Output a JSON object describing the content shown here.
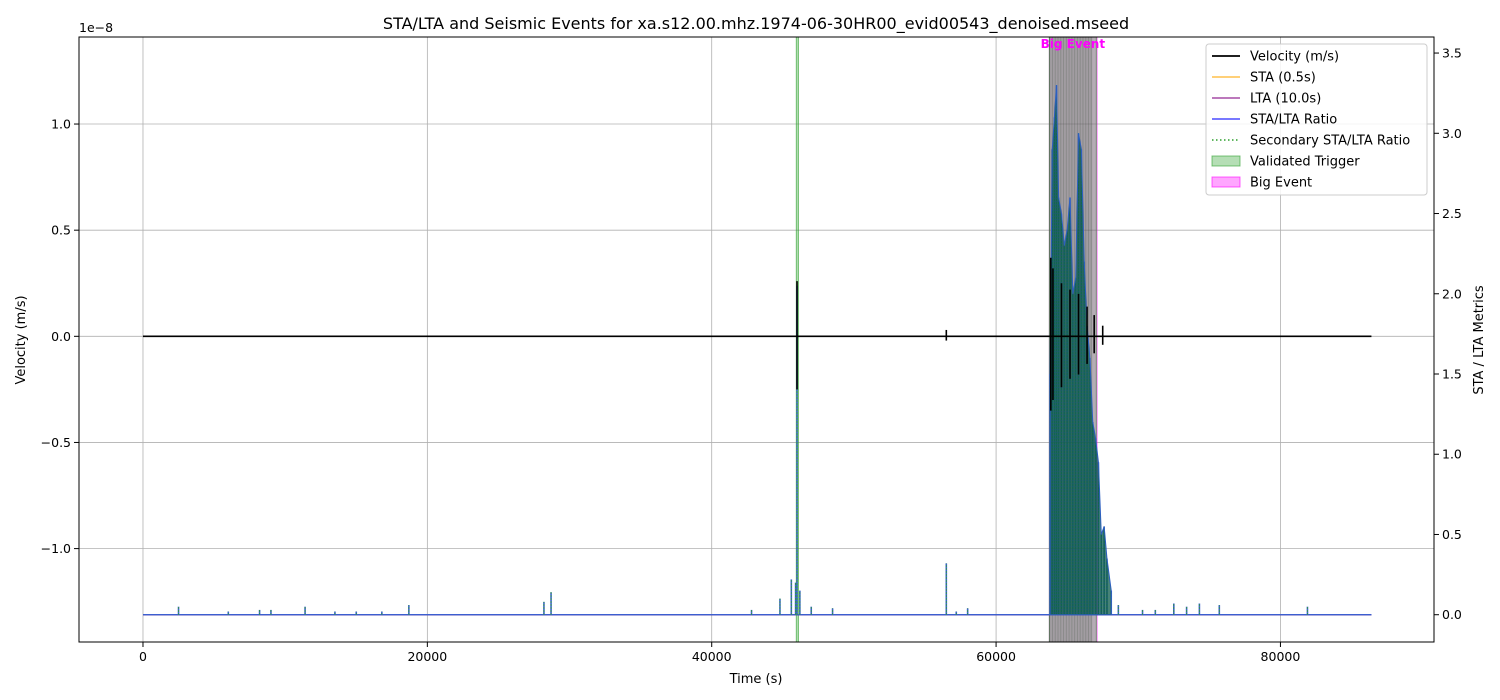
{
  "chart_data": {
    "type": "line",
    "title": "STA/LTA and Seismic Events for xa.s12.00.mhz.1974-06-30HR00_evid00543_denoised.mseed",
    "xlabel": "Time (s)",
    "ylabel_left": "Velocity (m/s)",
    "ylabel_right": "STA / LTA Metrics",
    "y_left_offset_label": "1e−8",
    "xlim": [
      -4500,
      90800
    ],
    "ylim_left": [
      -1.44,
      1.41
    ],
    "ylim_right": [
      -0.17,
      3.6
    ],
    "x_ticks": [
      0,
      20000,
      40000,
      60000,
      80000
    ],
    "x_tick_labels": [
      "0",
      "20000",
      "40000",
      "60000",
      "80000"
    ],
    "y_left_ticks": [
      -1.0,
      -0.5,
      0.0,
      0.5,
      1.0
    ],
    "y_left_tick_labels": [
      "−1.0",
      "−0.5",
      "0.0",
      "0.5",
      "1.0"
    ],
    "y_right_ticks": [
      0.0,
      0.5,
      1.0,
      1.5,
      2.0,
      2.5,
      3.0,
      3.5
    ],
    "y_right_tick_labels": [
      "0.0",
      "0.5",
      "1.0",
      "1.5",
      "2.0",
      "2.5",
      "3.0",
      "3.5"
    ],
    "grid": true,
    "legend_position": "top-right",
    "legend": [
      {
        "label": "Velocity (m/s)",
        "style": "line",
        "color": "#000000"
      },
      {
        "label": "STA (0.5s)",
        "style": "line",
        "color": "#ffa500"
      },
      {
        "label": "LTA (10.0s)",
        "style": "line",
        "color": "#800080"
      },
      {
        "label": "STA/LTA Ratio",
        "style": "line",
        "color": "#0000ff"
      },
      {
        "label": "Secondary STA/LTA Ratio",
        "style": "dotted",
        "color": "#2ca02c"
      },
      {
        "label": "Validated Trigger",
        "style": "patch",
        "color": "#2ca02c"
      },
      {
        "label": "Big Event",
        "style": "patch",
        "color": "#ff00ff"
      }
    ],
    "velocity": {
      "name": "Velocity (m/s)",
      "color": "#000000",
      "x_range": [
        0,
        86400
      ],
      "spikes": [
        {
          "x": 46000,
          "top": 0.26,
          "bottom": -0.25
        },
        {
          "x": 56500,
          "top": 0.03,
          "bottom": -0.02
        },
        {
          "x": 63850,
          "top": 0.37,
          "bottom": -0.35
        },
        {
          "x": 64000,
          "top": 0.32,
          "bottom": -0.3
        },
        {
          "x": 64600,
          "top": 0.25,
          "bottom": -0.24
        },
        {
          "x": 65200,
          "top": 0.22,
          "bottom": -0.2
        },
        {
          "x": 65800,
          "top": 0.2,
          "bottom": -0.18
        },
        {
          "x": 66400,
          "top": 0.14,
          "bottom": -0.13
        },
        {
          "x": 66900,
          "top": 0.1,
          "bottom": -0.08
        },
        {
          "x": 67500,
          "top": 0.05,
          "bottom": -0.04
        }
      ]
    },
    "ratio": {
      "name": "STA/LTA Ratio",
      "color": "#3b5fd0",
      "baseline": 0.0,
      "peaks": [
        {
          "x": 2500,
          "y": 0.05
        },
        {
          "x": 6000,
          "y": 0.02
        },
        {
          "x": 8200,
          "y": 0.03
        },
        {
          "x": 9000,
          "y": 0.03
        },
        {
          "x": 11400,
          "y": 0.05
        },
        {
          "x": 13500,
          "y": 0.02
        },
        {
          "x": 15000,
          "y": 0.02
        },
        {
          "x": 16800,
          "y": 0.02
        },
        {
          "x": 18700,
          "y": 0.06
        },
        {
          "x": 28200,
          "y": 0.08
        },
        {
          "x": 28700,
          "y": 0.14
        },
        {
          "x": 42800,
          "y": 0.03
        },
        {
          "x": 44800,
          "y": 0.1
        },
        {
          "x": 45600,
          "y": 0.22
        },
        {
          "x": 45900,
          "y": 0.2
        },
        {
          "x": 46000,
          "y": 2.05
        },
        {
          "x": 46200,
          "y": 0.15
        },
        {
          "x": 47000,
          "y": 0.05
        },
        {
          "x": 48500,
          "y": 0.04
        },
        {
          "x": 56500,
          "y": 0.32
        },
        {
          "x": 57200,
          "y": 0.02
        },
        {
          "x": 58000,
          "y": 0.04
        },
        {
          "x": 63800,
          "y": 1.5
        },
        {
          "x": 63950,
          "y": 2.9
        },
        {
          "x": 64100,
          "y": 3.1
        },
        {
          "x": 64250,
          "y": 3.3
        },
        {
          "x": 64400,
          "y": 2.6
        },
        {
          "x": 64600,
          "y": 2.5
        },
        {
          "x": 64800,
          "y": 2.3
        },
        {
          "x": 65000,
          "y": 2.4
        },
        {
          "x": 65200,
          "y": 2.6
        },
        {
          "x": 65400,
          "y": 2.0
        },
        {
          "x": 65600,
          "y": 2.1
        },
        {
          "x": 65800,
          "y": 3.0
        },
        {
          "x": 66000,
          "y": 2.9
        },
        {
          "x": 66200,
          "y": 2.2
        },
        {
          "x": 66400,
          "y": 1.8
        },
        {
          "x": 66600,
          "y": 1.6
        },
        {
          "x": 66800,
          "y": 1.2
        },
        {
          "x": 67000,
          "y": 1.1
        },
        {
          "x": 67200,
          "y": 0.95
        },
        {
          "x": 67400,
          "y": 0.5
        },
        {
          "x": 67600,
          "y": 0.55
        },
        {
          "x": 67800,
          "y": 0.35
        },
        {
          "x": 68100,
          "y": 0.15
        },
        {
          "x": 68600,
          "y": 0.06
        },
        {
          "x": 70300,
          "y": 0.03
        },
        {
          "x": 71200,
          "y": 0.03
        },
        {
          "x": 72500,
          "y": 0.07
        },
        {
          "x": 73400,
          "y": 0.05
        },
        {
          "x": 74300,
          "y": 0.07
        },
        {
          "x": 75700,
          "y": 0.06
        },
        {
          "x": 81900,
          "y": 0.05
        }
      ]
    },
    "sta": {
      "name": "STA (0.5s)",
      "color": "#ffa500",
      "baseline": 0.0
    },
    "lta": {
      "name": "LTA (10.0s)",
      "color": "#800080",
      "baseline": 0.0
    },
    "validated_triggers": [
      {
        "start": 45950,
        "end": 46100
      },
      {
        "start": 63750,
        "end": 67050
      }
    ],
    "big_events": [
      {
        "start": 63750,
        "end": 67100
      }
    ],
    "annotations": [
      {
        "text": "Big Event",
        "x": 65400
      }
    ]
  }
}
